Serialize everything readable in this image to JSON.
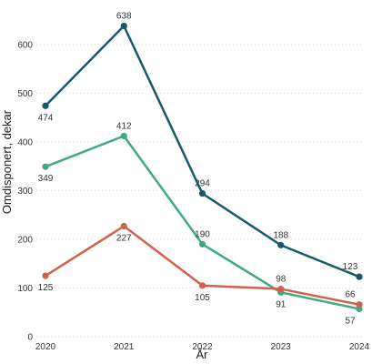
{
  "chart_data": {
    "type": "line",
    "title": "",
    "xlabel": "År",
    "ylabel": "Omdisponert, dekar",
    "x": [
      "2020",
      "2021",
      "2022",
      "2023",
      "2024"
    ],
    "ylim": [
      0,
      680
    ],
    "yticks": [
      0,
      100,
      200,
      300,
      400,
      500,
      600
    ],
    "grid": true,
    "legend": "none",
    "series": [
      {
        "color": "#145a6b",
        "values": [
          474,
          638,
          294,
          188,
          123
        ]
      },
      {
        "color": "#3faa7f",
        "values": [
          349,
          412,
          190,
          91,
          57
        ]
      },
      {
        "color": "#d2604a",
        "values": [
          125,
          227,
          105,
          98,
          66
        ]
      }
    ]
  }
}
